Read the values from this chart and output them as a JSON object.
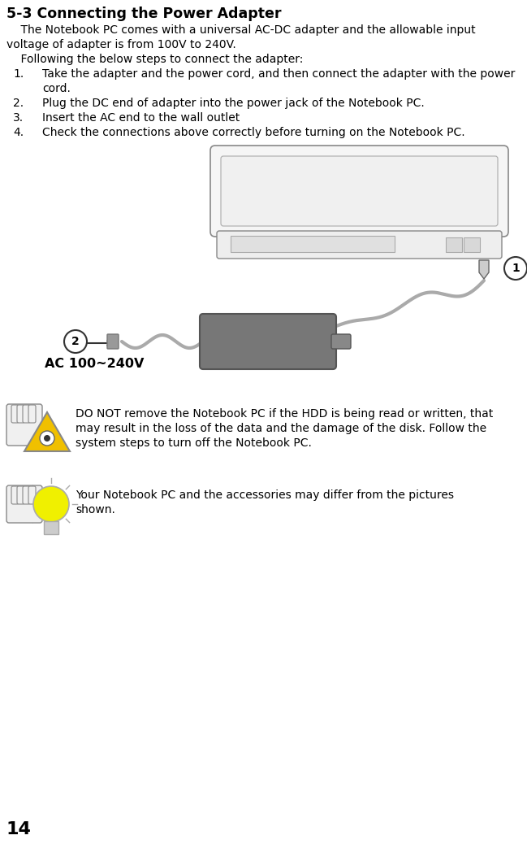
{
  "title": "5-3 Connecting the Power Adapter",
  "para1_line1": "    The Notebook PC comes with a universal AC-DC adapter and the allowable input",
  "para1_line2": "voltage of adapter is from 100V to 240V.",
  "para2": "    Following the below steps to connect the adapter:",
  "step1_line1": "Take the adapter and the power cord, and then connect the adapter with the power",
  "step1_line2": "cord.",
  "step2": "Plug the DC end of adapter into the power jack of the Notebook PC.",
  "step3": "Insert the AC end to the wall outlet",
  "step4": "Check the connections above correctly before turning on the Notebook PC.",
  "ac_label": "AC 100~240V",
  "warning_text_line1": "DO NOT remove the Notebook PC if the HDD is being read or written, that",
  "warning_text_line2": "may result in the loss of the data and the damage of the disk. Follow the",
  "warning_text_line3": "system steps to turn off the Notebook PC.",
  "note_text_line1": "Your Notebook PC and the accessories may differ from the pictures",
  "note_text_line2": "shown.",
  "page_number": "14",
  "bg_color": "#ffffff",
  "text_color": "#000000",
  "title_fontsize": 12.5,
  "body_fontsize": 10.0,
  "ac_label_fontsize": 11.5
}
